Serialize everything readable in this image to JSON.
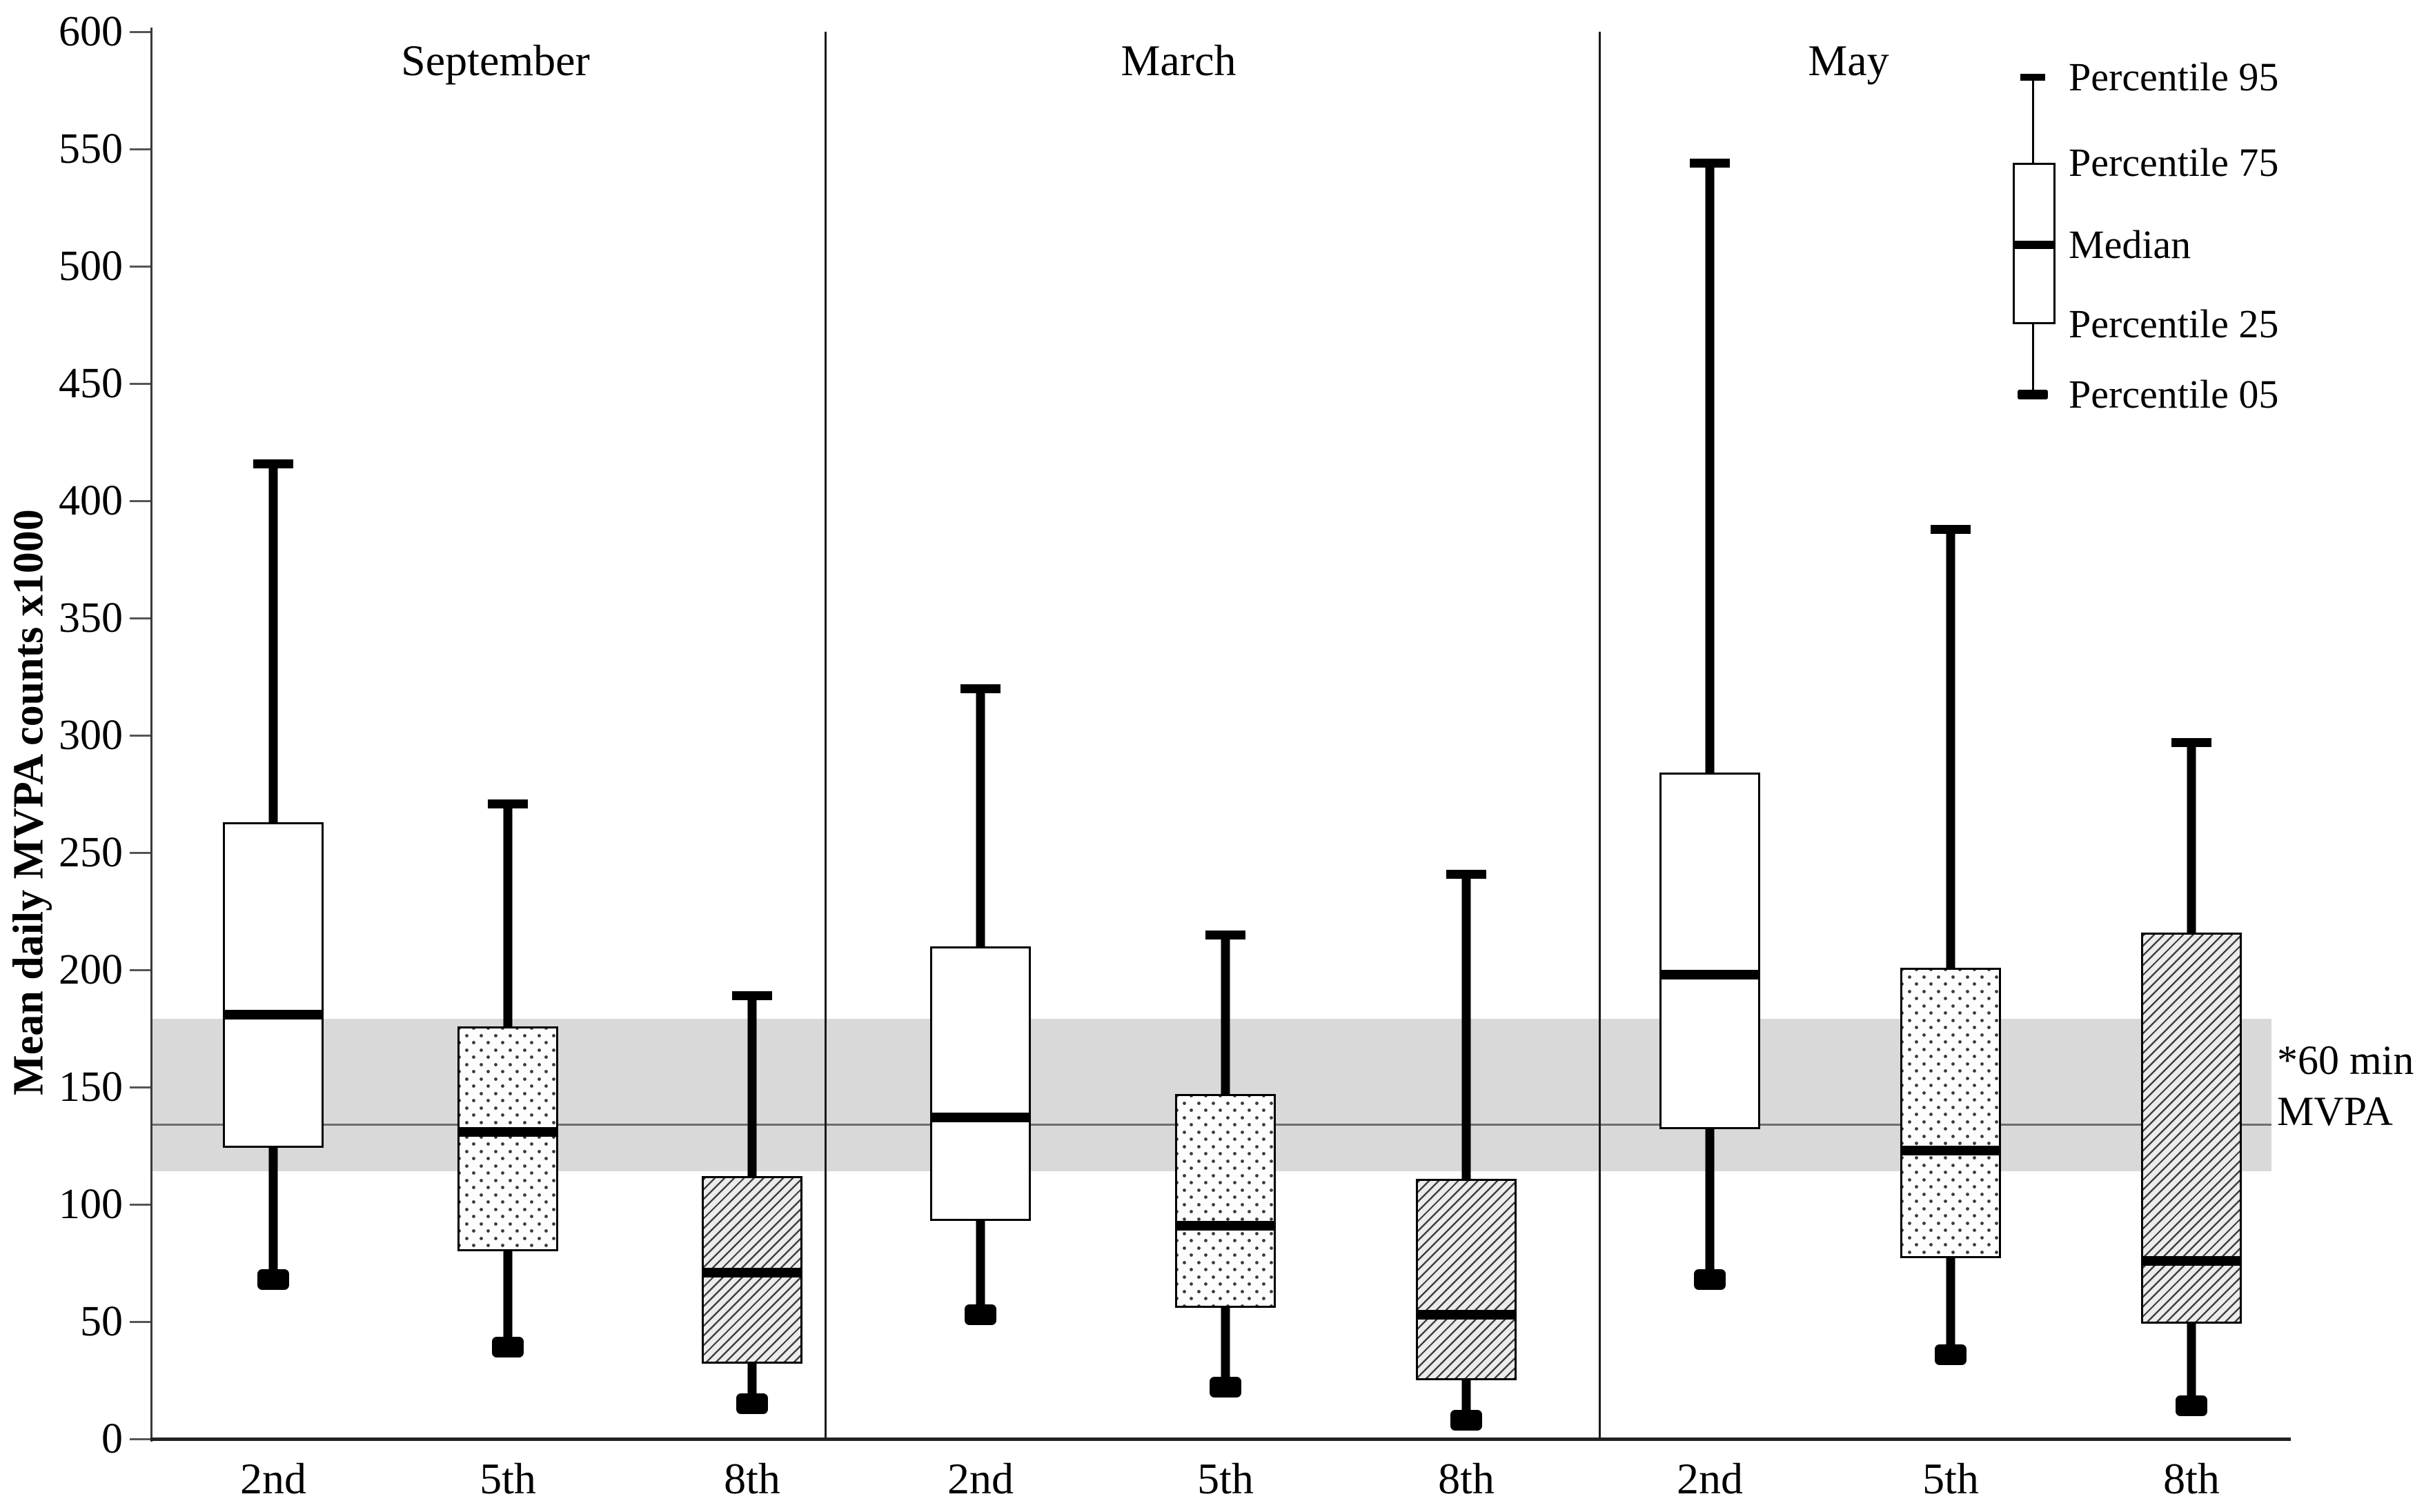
{
  "chart_data": {
    "type": "boxplot",
    "ylabel": "Mean daily MVPA counts x1000",
    "ylim": [
      0,
      600
    ],
    "yticks": [
      600,
      550,
      500,
      450,
      400,
      350,
      300,
      250,
      200,
      150,
      100,
      50,
      0
    ],
    "grid": "off",
    "legend_position": "top-right",
    "panels": [
      {
        "label": "September",
        "boxes": [
          {
            "category": "2nd",
            "pattern": "plain",
            "p95": 416,
            "p75": 263,
            "median": 181,
            "p25": 124,
            "p05": 68
          },
          {
            "category": "5th",
            "pattern": "dotted",
            "p95": 271,
            "p75": 176,
            "median": 131,
            "p25": 80,
            "p05": 39
          },
          {
            "category": "8th",
            "pattern": "hatched",
            "p95": 189,
            "p75": 112,
            "median": 71,
            "p25": 32,
            "p05": 15
          }
        ]
      },
      {
        "label": "March",
        "boxes": [
          {
            "category": "2nd",
            "pattern": "plain",
            "p95": 320,
            "p75": 210,
            "median": 137,
            "p25": 93,
            "p05": 53
          },
          {
            "category": "5th",
            "pattern": "dotted",
            "p95": 215,
            "p75": 147,
            "median": 91,
            "p25": 56,
            "p05": 22
          },
          {
            "category": "8th",
            "pattern": "hatched",
            "p95": 241,
            "p75": 111,
            "median": 53,
            "p25": 25,
            "p05": 8
          }
        ]
      },
      {
        "label": "May",
        "boxes": [
          {
            "category": "2nd",
            "pattern": "plain",
            "p95": 544,
            "p75": 284,
            "median": 198,
            "p25": 132,
            "p05": 68
          },
          {
            "category": "5th",
            "pattern": "dotted",
            "p95": 388,
            "p75": 201,
            "median": 123,
            "p25": 77,
            "p05": 36
          },
          {
            "category": "8th",
            "pattern": "hatched",
            "p95": 297,
            "p75": 216,
            "median": 76,
            "p25": 49,
            "p05": 14
          }
        ]
      }
    ],
    "legend": {
      "items": [
        "Percentile 95",
        "Percentile 75",
        "Median",
        "Percentile 25",
        "Percentile 05"
      ]
    },
    "reference_band": {
      "label_lines": [
        "*60 min",
        "MVPA"
      ],
      "band_top_value": 179,
      "band_bottom_value": 114,
      "line_value": 134
    },
    "colors": {
      "band": "#d9d9d9",
      "reference_line": "#6e6e6e",
      "box_border": "#000000",
      "median": "#000000",
      "whisker": "#000000",
      "background": "#ffffff"
    }
  }
}
